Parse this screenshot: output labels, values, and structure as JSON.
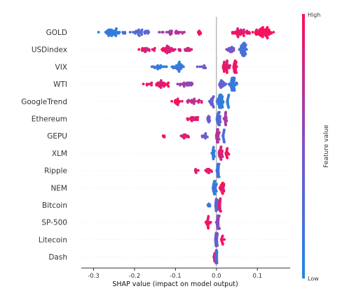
{
  "chart_data": {
    "type": "scatter",
    "subtype": "shap-beeswarm",
    "title": "",
    "xlabel": "SHAP value (impact on model output)",
    "xlim": [
      -0.33,
      0.18
    ],
    "xticks": [
      "-0.3",
      "-0.2",
      "-0.1",
      "0.0",
      "0.1"
    ],
    "xtick_values": [
      -0.3,
      -0.2,
      -0.1,
      0.0,
      0.1
    ],
    "grid": false,
    "colorbar": {
      "label": "Feature value",
      "high_label": "High",
      "low_label": "Low",
      "low_color": "#1e88e5",
      "high_color": "#ff0d57"
    },
    "features": [
      {
        "name": "GOLD",
        "min": -0.3,
        "max": 0.155,
        "clusters": [
          {
            "c": -0.255,
            "w": 0.04,
            "n": 45,
            "v": 0.12
          },
          {
            "c": -0.19,
            "w": 0.05,
            "n": 28,
            "v": 0.3
          },
          {
            "c": -0.11,
            "w": 0.05,
            "n": 22,
            "v": 0.7
          },
          {
            "c": -0.045,
            "w": 0.03,
            "n": 6,
            "v": 0.95
          },
          {
            "c": 0.06,
            "w": 0.035,
            "n": 40,
            "v": 0.92
          },
          {
            "c": 0.115,
            "w": 0.03,
            "n": 60,
            "v": 1.0
          }
        ]
      },
      {
        "name": "USDindex",
        "min": -0.2,
        "max": 0.085,
        "clusters": [
          {
            "c": -0.17,
            "w": 0.03,
            "n": 20,
            "v": 0.85
          },
          {
            "c": -0.12,
            "w": 0.03,
            "n": 30,
            "v": 0.9
          },
          {
            "c": -0.075,
            "w": 0.03,
            "n": 15,
            "v": 0.8
          },
          {
            "c": 0.035,
            "w": 0.015,
            "n": 18,
            "v": 0.45
          },
          {
            "c": 0.065,
            "w": 0.015,
            "n": 45,
            "v": 0.2
          }
        ]
      },
      {
        "name": "VIX",
        "min": -0.175,
        "max": 0.05,
        "clusters": [
          {
            "c": -0.145,
            "w": 0.03,
            "n": 18,
            "v": 0.1
          },
          {
            "c": -0.095,
            "w": 0.035,
            "n": 30,
            "v": 0.12
          },
          {
            "c": -0.035,
            "w": 0.025,
            "n": 8,
            "v": 0.45
          },
          {
            "c": 0.025,
            "w": 0.015,
            "n": 30,
            "v": 0.9
          },
          {
            "c": 0.045,
            "w": 0.008,
            "n": 22,
            "v": 1.0
          }
        ]
      },
      {
        "name": "WTI",
        "min": -0.185,
        "max": 0.065,
        "clusters": [
          {
            "c": -0.165,
            "w": 0.02,
            "n": 8,
            "v": 0.95
          },
          {
            "c": -0.135,
            "w": 0.03,
            "n": 30,
            "v": 0.92
          },
          {
            "c": -0.075,
            "w": 0.035,
            "n": 22,
            "v": 0.6
          },
          {
            "c": 0.015,
            "w": 0.015,
            "n": 20,
            "v": 0.35
          },
          {
            "c": 0.04,
            "w": 0.015,
            "n": 45,
            "v": 0.15
          }
        ]
      },
      {
        "name": "GoogleTrend",
        "min": -0.12,
        "max": 0.035,
        "clusters": [
          {
            "c": -0.095,
            "w": 0.02,
            "n": 15,
            "v": 0.95
          },
          {
            "c": -0.055,
            "w": 0.025,
            "n": 22,
            "v": 0.8
          },
          {
            "c": -0.01,
            "w": 0.01,
            "n": 18,
            "v": 0.4
          },
          {
            "c": 0.01,
            "w": 0.012,
            "n": 50,
            "v": 0.1
          },
          {
            "c": 0.028,
            "w": 0.006,
            "n": 15,
            "v": 0.1
          }
        ]
      },
      {
        "name": "Ethereum",
        "min": -0.085,
        "max": 0.03,
        "clusters": [
          {
            "c": -0.06,
            "w": 0.025,
            "n": 18,
            "v": 0.9
          },
          {
            "c": -0.018,
            "w": 0.01,
            "n": 10,
            "v": 0.4
          },
          {
            "c": 0.005,
            "w": 0.008,
            "n": 35,
            "v": 0.3
          },
          {
            "c": 0.022,
            "w": 0.006,
            "n": 20,
            "v": 0.7
          }
        ]
      },
      {
        "name": "GEPU",
        "min": -0.135,
        "max": 0.022,
        "clusters": [
          {
            "c": -0.13,
            "w": 0.006,
            "n": 4,
            "v": 1.0
          },
          {
            "c": -0.075,
            "w": 0.02,
            "n": 12,
            "v": 0.9
          },
          {
            "c": -0.03,
            "w": 0.015,
            "n": 10,
            "v": 0.4
          },
          {
            "c": 0.003,
            "w": 0.006,
            "n": 35,
            "v": 0.7
          },
          {
            "c": 0.018,
            "w": 0.004,
            "n": 12,
            "v": 0.2
          }
        ]
      },
      {
        "name": "XLM",
        "min": -0.015,
        "max": 0.035,
        "clusters": [
          {
            "c": -0.008,
            "w": 0.006,
            "n": 18,
            "v": 0.1
          },
          {
            "c": 0.01,
            "w": 0.01,
            "n": 28,
            "v": 0.85
          },
          {
            "c": 0.025,
            "w": 0.008,
            "n": 12,
            "v": 0.95
          }
        ]
      },
      {
        "name": "Ripple",
        "min": -0.06,
        "max": 0.01,
        "clusters": [
          {
            "c": -0.05,
            "w": 0.01,
            "n": 6,
            "v": 0.95
          },
          {
            "c": -0.02,
            "w": 0.012,
            "n": 14,
            "v": 0.9
          },
          {
            "c": 0.004,
            "w": 0.005,
            "n": 30,
            "v": 0.2
          }
        ]
      },
      {
        "name": "NEM",
        "min": -0.012,
        "max": 0.025,
        "clusters": [
          {
            "c": -0.005,
            "w": 0.007,
            "n": 40,
            "v": 0.15
          },
          {
            "c": 0.014,
            "w": 0.01,
            "n": 22,
            "v": 0.95
          }
        ]
      },
      {
        "name": "Bitcoin",
        "min": -0.025,
        "max": 0.012,
        "clusters": [
          {
            "c": -0.018,
            "w": 0.006,
            "n": 5,
            "v": 0.2
          },
          {
            "c": 0.0,
            "w": 0.005,
            "n": 20,
            "v": 0.3
          },
          {
            "c": 0.008,
            "w": 0.004,
            "n": 22,
            "v": 0.9
          }
        ]
      },
      {
        "name": "SP-500",
        "min": -0.035,
        "max": 0.01,
        "clusters": [
          {
            "c": -0.022,
            "w": 0.012,
            "n": 18,
            "v": 0.95
          },
          {
            "c": 0.004,
            "w": 0.005,
            "n": 45,
            "v": 0.55
          }
        ]
      },
      {
        "name": "Litecoin",
        "min": -0.005,
        "max": 0.028,
        "clusters": [
          {
            "c": 0.0,
            "w": 0.004,
            "n": 40,
            "v": 0.4
          },
          {
            "c": 0.016,
            "w": 0.008,
            "n": 10,
            "v": 0.95
          }
        ]
      },
      {
        "name": "Dash",
        "min": -0.01,
        "max": 0.005,
        "clusters": [
          {
            "c": -0.005,
            "w": 0.003,
            "n": 8,
            "v": 0.9
          },
          {
            "c": 0.0,
            "w": 0.003,
            "n": 45,
            "v": 0.25
          }
        ]
      }
    ]
  }
}
